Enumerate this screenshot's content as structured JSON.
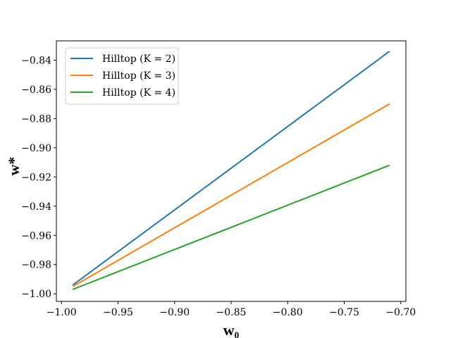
{
  "chart_data": {
    "type": "line",
    "title": "",
    "xlabel": "w₀",
    "ylabel": "w*",
    "xlim": [
      -1.0045,
      -0.6955
    ],
    "ylim": [
      -1.0052,
      -0.8268
    ],
    "xticks": [
      -1.0,
      -0.95,
      -0.9,
      -0.85,
      -0.8,
      -0.75,
      -0.7
    ],
    "xtick_labels": [
      "−1.00",
      "−0.95",
      "−0.90",
      "−0.85",
      "−0.80",
      "−0.75",
      "−0.70"
    ],
    "yticks": [
      -1.0,
      -0.98,
      -0.96,
      -0.94,
      -0.92,
      -0.9,
      -0.88,
      -0.86,
      -0.84
    ],
    "ytick_labels": [
      "−1.00",
      "−0.98",
      "−0.96",
      "−0.94",
      "−0.92",
      "−0.90",
      "−0.88",
      "−0.86",
      "−0.84"
    ],
    "grid": false,
    "legend_position": "top-left",
    "series": [
      {
        "name": "Hilltop (K = 2)",
        "color": "#1f77b4",
        "x": [
          -0.99,
          -0.71
        ],
        "y": [
          -0.994,
          -0.834
        ]
      },
      {
        "name": "Hilltop (K = 3)",
        "color": "#ff7f0e",
        "x": [
          -0.99,
          -0.71
        ],
        "y": [
          -0.995,
          -0.87
        ]
      },
      {
        "name": "Hilltop (K = 4)",
        "color": "#2ca02c",
        "x": [
          -0.99,
          -0.71
        ],
        "y": [
          -0.997,
          -0.912
        ]
      }
    ]
  }
}
